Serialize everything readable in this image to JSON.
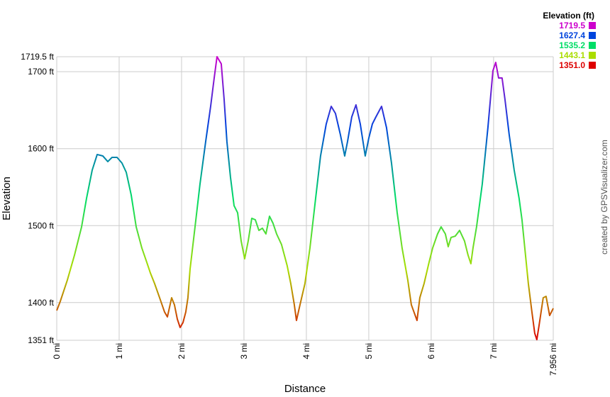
{
  "chart_data": {
    "type": "line",
    "y_label": "Elevation",
    "x_label": "Distance",
    "credit": "created by GPSVisualizer.com",
    "color_scale": {
      "title": "Elevation (ft)",
      "stops": [
        {
          "value": 1719.5,
          "color": "#cc00cc"
        },
        {
          "value": 1627.4,
          "color": "#0044dd"
        },
        {
          "value": 1535.2,
          "color": "#00dd66"
        },
        {
          "value": 1443.1,
          "color": "#aadd00"
        },
        {
          "value": 1351,
          "label": "1351.0",
          "color": "#dd0000"
        }
      ]
    },
    "xlim": [
      0,
      7.956
    ],
    "ylim": [
      1351,
      1719.5
    ],
    "xticks": [
      {
        "value": 0,
        "label": "0 mi"
      },
      {
        "value": 1,
        "label": "1 mi"
      },
      {
        "value": 2,
        "label": "2 mi"
      },
      {
        "value": 3,
        "label": "3 mi"
      },
      {
        "value": 4,
        "label": "4 mi"
      },
      {
        "value": 5,
        "label": "5 mi"
      },
      {
        "value": 6,
        "label": "6 mi"
      },
      {
        "value": 7,
        "label": "7 mi"
      },
      {
        "value": 7.956,
        "label": "7.956 mi"
      }
    ],
    "yticks": [
      {
        "value": 1351,
        "label": "1351 ft"
      },
      {
        "value": 1400,
        "label": "1400 ft"
      },
      {
        "value": 1500,
        "label": "1500 ft"
      },
      {
        "value": 1600,
        "label": "1600 ft"
      },
      {
        "value": 1700,
        "label": "1700 ft"
      },
      {
        "value": 1719.5,
        "label": "1719.5 ft"
      }
    ],
    "grid": true,
    "x": [
      0,
      0.057,
      0.17,
      0.284,
      0.398,
      0.477,
      0.568,
      0.648,
      0.739,
      0.818,
      0.886,
      0.966,
      1.045,
      1.114,
      1.193,
      1.273,
      1.364,
      1.443,
      1.5,
      1.568,
      1.648,
      1.727,
      1.773,
      1.841,
      1.886,
      1.932,
      1.977,
      2.023,
      2.068,
      2.102,
      2.136,
      2.216,
      2.295,
      2.386,
      2.466,
      2.523,
      2.568,
      2.636,
      2.682,
      2.727,
      2.784,
      2.841,
      2.898,
      2.955,
      3.011,
      3.068,
      3.125,
      3.182,
      3.239,
      3.295,
      3.352,
      3.409,
      3.466,
      3.523,
      3.602,
      3.693,
      3.75,
      3.807,
      3.841,
      3.898,
      3.977,
      4.057,
      4.148,
      4.227,
      4.318,
      4.398,
      4.466,
      4.545,
      4.614,
      4.659,
      4.727,
      4.795,
      4.864,
      4.943,
      5.0,
      5.057,
      5.114,
      5.205,
      5.284,
      5.364,
      5.455,
      5.534,
      5.625,
      5.682,
      5.773,
      5.818,
      5.886,
      5.966,
      6.023,
      6.102,
      6.159,
      6.227,
      6.273,
      6.318,
      6.386,
      6.455,
      6.534,
      6.591,
      6.636,
      6.67,
      6.727,
      6.818,
      6.909,
      6.989,
      7.034,
      7.08,
      7.136,
      7.182,
      7.25,
      7.33,
      7.409,
      7.455,
      7.5,
      7.557,
      7.614,
      7.659,
      7.693,
      7.727,
      7.795,
      7.841,
      7.898,
      7.956
    ],
    "values": [
      1389.7,
      1401.7,
      1429.3,
      1461.6,
      1498.4,
      1535.3,
      1572.1,
      1592.4,
      1590.5,
      1583.2,
      1588.7,
      1588.7,
      1581.3,
      1569.3,
      1539.9,
      1498.4,
      1470.8,
      1452.3,
      1438.5,
      1424.7,
      1406.3,
      1387.9,
      1381.4,
      1406.3,
      1397.1,
      1378.6,
      1367.6,
      1374.0,
      1387.9,
      1406.3,
      1443.1,
      1498.4,
      1553.7,
      1609.0,
      1655.0,
      1691.9,
      1719.5,
      1710.3,
      1664.2,
      1609.0,
      1562.9,
      1526.0,
      1516.8,
      1480.0,
      1456.9,
      1480.0,
      1509.5,
      1507.6,
      1493.8,
      1496.6,
      1489.2,
      1512.2,
      1503.0,
      1489.2,
      1475.4,
      1447.7,
      1424.7,
      1397.1,
      1376.8,
      1397.1,
      1424.7,
      1470.8,
      1535.3,
      1590.5,
      1632.0,
      1655.0,
      1645.8,
      1618.2,
      1590.5,
      1609.0,
      1641.2,
      1656.9,
      1632.0,
      1590.5,
      1613.6,
      1632.0,
      1641.2,
      1655.0,
      1627.4,
      1581.3,
      1516.8,
      1470.8,
      1429.3,
      1397.1,
      1376.8,
      1406.3,
      1424.7,
      1452.3,
      1470.8,
      1489.2,
      1498.4,
      1489.2,
      1472.6,
      1484.6,
      1486.4,
      1493.8,
      1480.0,
      1461.6,
      1450.5,
      1470.8,
      1498.4,
      1553.7,
      1627.4,
      1701.1,
      1712.1,
      1691.9,
      1691.9,
      1664.2,
      1618.2,
      1572.1,
      1535.3,
      1507.6,
      1470.8,
      1424.7,
      1387.9,
      1360.2,
      1351.9,
      1369.4,
      1406.3,
      1408.1,
      1383.2,
      1392.5
    ]
  }
}
